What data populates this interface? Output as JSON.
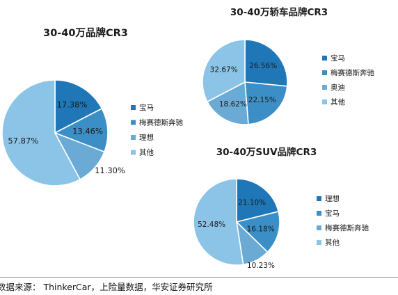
{
  "colors": {
    "palette": [
      "#1f77b8",
      "#3b8fc6",
      "#6aaad4",
      "#8cc4e8"
    ]
  },
  "source": "数据来源： ThinkerCar，上险量数据，华安证券研究所",
  "chart_data": [
    {
      "type": "pie",
      "title": "30-40万品牌CR3",
      "legend_position": "right",
      "series": [
        {
          "name": "宝马",
          "value": 17.38,
          "label": "17.38%",
          "color": "#1f77b8"
        },
        {
          "name": "梅赛德斯奔驰",
          "value": 13.46,
          "label": "13.46%",
          "color": "#3b8fc6"
        },
        {
          "name": "理想",
          "value": 11.3,
          "label": "11.30%",
          "color": "#6aaad4"
        },
        {
          "name": "其他",
          "value": 57.87,
          "label": "57.87%",
          "color": "#8cc4e8"
        }
      ]
    },
    {
      "type": "pie",
      "title": "30-40万轿车品牌CR3",
      "legend_position": "right",
      "series": [
        {
          "name": "宝马",
          "value": 26.56,
          "label": "26.56%",
          "color": "#1f77b8"
        },
        {
          "name": "梅赛德斯奔驰",
          "value": 22.15,
          "label": "22.15%",
          "color": "#3b8fc6"
        },
        {
          "name": "奥迪",
          "value": 18.62,
          "label": "18.62%",
          "color": "#6aaad4"
        },
        {
          "name": "其他",
          "value": 32.67,
          "label": "32.67%",
          "color": "#8cc4e8"
        }
      ]
    },
    {
      "type": "pie",
      "title": "30-40万SUV品牌CR3",
      "legend_position": "right",
      "series": [
        {
          "name": "理想",
          "value": 21.1,
          "label": "21.10%",
          "color": "#1f77b8"
        },
        {
          "name": "宝马",
          "value": 16.18,
          "label": "16.18%",
          "color": "#3b8fc6"
        },
        {
          "name": "梅赛德斯奔驰",
          "value": 10.23,
          "label": "10.23%",
          "color": "#6aaad4"
        },
        {
          "name": "其他",
          "value": 52.48,
          "label": "52.48%",
          "color": "#8cc4e8"
        }
      ]
    }
  ]
}
